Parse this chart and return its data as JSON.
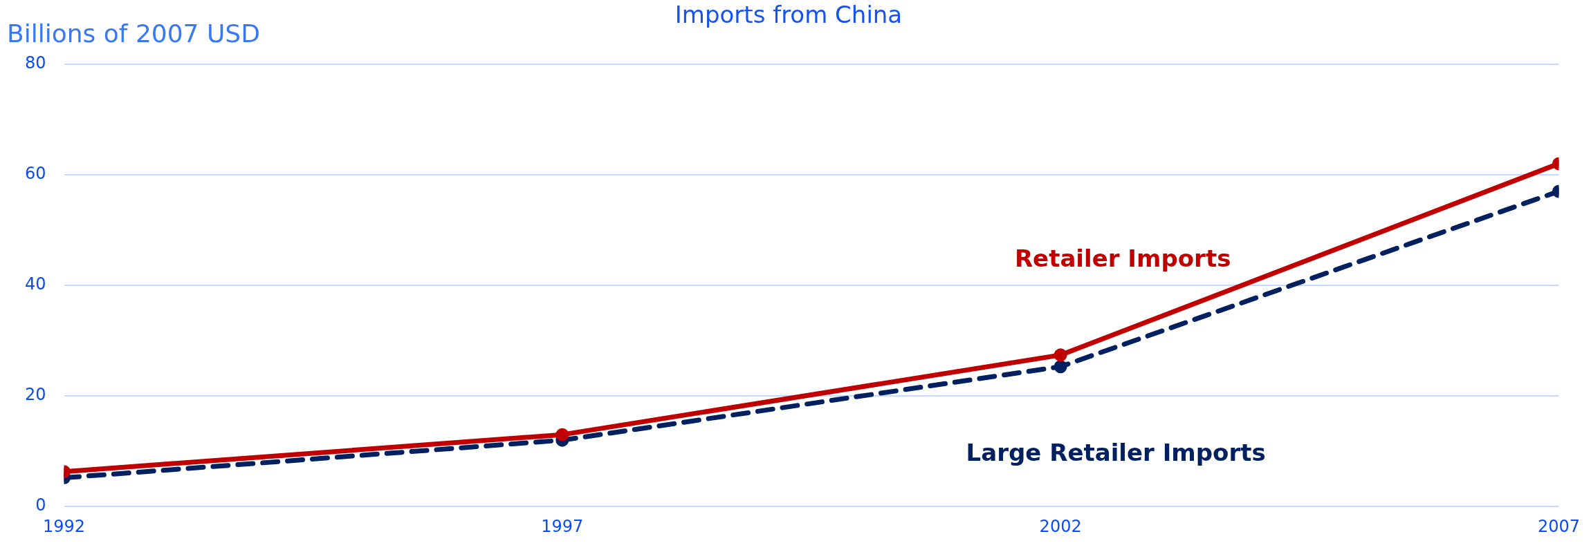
{
  "chart_data": {
    "type": "line",
    "title": "Imports from China",
    "ylabel": "Billions of 2007 USD",
    "x": [
      1992,
      1997,
      2002,
      2007
    ],
    "series": [
      {
        "name": "Retailer Imports",
        "color": "#c00000",
        "values": [
          6.3,
          13,
          27.4,
          62
        ]
      },
      {
        "name": "Large Retailer Imports",
        "color": "#002060",
        "values": [
          5.2,
          12,
          25.3,
          57
        ],
        "line_style": "dashed"
      }
    ],
    "xlim": [
      1992,
      2007
    ],
    "xticks": [
      1992,
      1997,
      2002,
      2007
    ],
    "ylim": [
      0,
      80
    ],
    "yticks": [
      0,
      20,
      40,
      60,
      80
    ],
    "grid": "y",
    "legend": false,
    "marker": "circle",
    "line_style": "solid"
  }
}
